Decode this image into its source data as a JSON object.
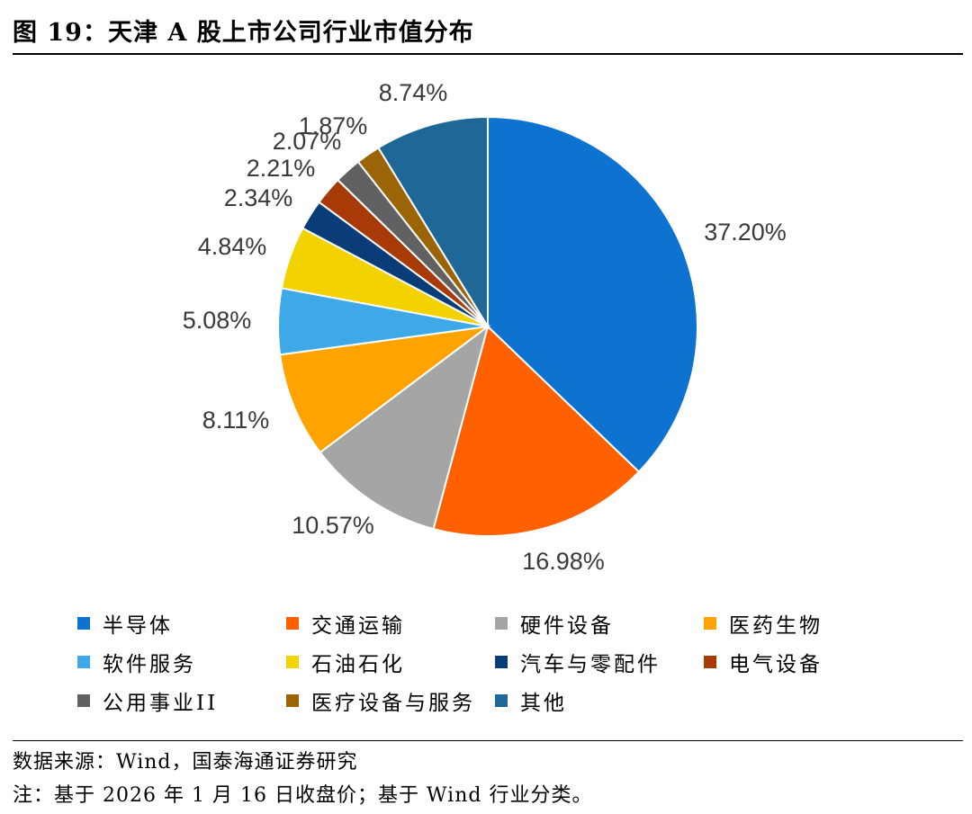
{
  "figure": {
    "title": "图 19：天津 A 股上市公司行业市值分布",
    "source": "数据来源：Wind，国泰海通证券研究",
    "note": "注：基于 2026 年 1 月 16 日收盘价；基于 Wind 行业分类。"
  },
  "chart_data": {
    "type": "pie",
    "title": "",
    "unit": "%",
    "legend_position": "bottom",
    "slices": [
      {
        "name": "半导体",
        "value": 37.2,
        "label": "37.20%",
        "color": "#0e73d0"
      },
      {
        "name": "交通运输",
        "value": 16.98,
        "label": "16.98%",
        "color": "#ff6000"
      },
      {
        "name": "硬件设备",
        "value": 10.57,
        "label": "10.57%",
        "color": "#a5a5a5"
      },
      {
        "name": "医药生物",
        "value": 8.11,
        "label": "8.11%",
        "color": "#ffa300"
      },
      {
        "name": "软件服务",
        "value": 5.08,
        "label": "5.08%",
        "color": "#3fa8e6"
      },
      {
        "name": "石油石化",
        "value": 4.84,
        "label": "4.84%",
        "color": "#f2d200"
      },
      {
        "name": "汽车与零配件",
        "value": 2.34,
        "label": "2.34%",
        "color": "#0a3d78"
      },
      {
        "name": "电气设备",
        "value": 2.21,
        "label": "2.21%",
        "color": "#a83a08"
      },
      {
        "name": "公用事业II",
        "value": 2.07,
        "label": "2.07%",
        "color": "#616161"
      },
      {
        "name": "医疗设备与服务",
        "value": 1.87,
        "label": "1.87%",
        "color": "#9b6406"
      },
      {
        "name": "其他",
        "value": 8.74,
        "label": "8.74%",
        "color": "#1e6796"
      }
    ]
  }
}
